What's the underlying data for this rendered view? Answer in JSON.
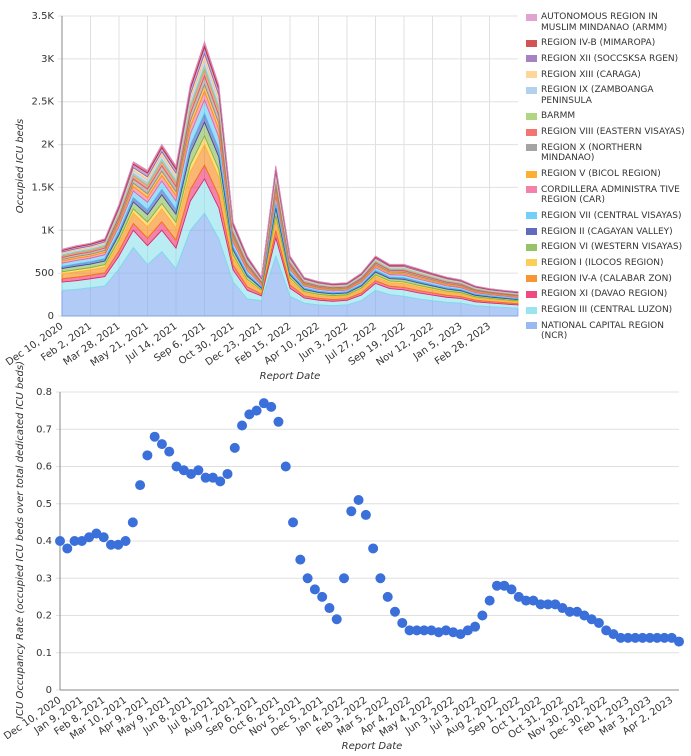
{
  "chart_data": [
    {
      "type": "area",
      "y_label": "Occupied ICU beds",
      "x_label": "Report Date",
      "categories": [
        "Dec 10, 2020",
        null,
        "Feb 2, 2021",
        null,
        "Mar 28, 2021",
        null,
        "May 21, 2021",
        null,
        "Jul 14, 2021",
        null,
        "Sep 6, 2021",
        null,
        "Oct 30, 2021",
        null,
        "Dec 23, 2021",
        null,
        "Feb 15, 2022",
        null,
        "Apr 10, 2022",
        null,
        "Jun 3, 2022",
        null,
        "Jul 27, 2022",
        null,
        "Sep 19, 2022",
        null,
        "Nov 12, 2022",
        null,
        "Jan 5, 2023",
        null,
        "Feb 28, 2023",
        null,
        null
      ],
      "ylim": [
        0,
        3500
      ],
      "yticks": [
        0,
        500,
        {
          "value": 1000,
          "label": "1K"
        },
        {
          "value": 1500,
          "label": "1.5K"
        },
        {
          "value": 2000,
          "label": "2K"
        },
        {
          "value": 2500,
          "label": "2.5K"
        },
        {
          "value": 3000,
          "label": "3K"
        },
        {
          "value": 3500,
          "label": "3.5K"
        }
      ],
      "grid": true,
      "xgrid": true,
      "stacked": true,
      "legend": "right",
      "series": [
        {
          "name": "AUTONOMOUS REGION IN MUSLIM MINDANAO (ARMM)",
          "color": "#d98cc3",
          "values": [
            5,
            5,
            5,
            6,
            8,
            10,
            11,
            13,
            12,
            17,
            20,
            18,
            7,
            5,
            3,
            11,
            5,
            3,
            3,
            3,
            3,
            3,
            4,
            4,
            4,
            4,
            3,
            3,
            3,
            2,
            2,
            2,
            2
          ]
        },
        {
          "name": "REGION IV-B (MIMAROPA)",
          "color": "#c62828",
          "values": [
            10,
            10,
            10,
            11,
            15,
            20,
            22,
            25,
            24,
            34,
            40,
            36,
            14,
            10,
            5,
            21,
            9,
            6,
            5,
            5,
            5,
            6,
            8,
            7,
            7,
            7,
            6,
            6,
            5,
            5,
            4,
            4,
            4
          ]
        },
        {
          "name": "REGION XII (SOCCSKSA RGEN)",
          "color": "#8e63b5",
          "values": [
            19,
            20,
            21,
            22,
            30,
            40,
            44,
            50,
            48,
            68,
            80,
            72,
            28,
            20,
            11,
            42,
            19,
            12,
            11,
            10,
            10,
            13,
            16,
            14,
            15,
            14,
            13,
            12,
            11,
            9,
            8,
            8,
            8
          ]
        },
        {
          "name": "REGION XIII (CARAGA)",
          "color": "#ffcc80",
          "values": [
            14,
            15,
            16,
            17,
            23,
            30,
            33,
            38,
            36,
            51,
            60,
            54,
            21,
            15,
            8,
            32,
            14,
            9,
            8,
            8,
            8,
            10,
            12,
            11,
            11,
            11,
            10,
            9,
            8,
            7,
            6,
            6,
            6
          ]
        },
        {
          "name": "REGION IX (ZAMBOANGA PENINSULA",
          "color": "#9ec5e8",
          "values": [
            19,
            20,
            21,
            22,
            30,
            40,
            44,
            50,
            48,
            68,
            80,
            72,
            28,
            20,
            11,
            42,
            19,
            12,
            11,
            10,
            10,
            13,
            16,
            14,
            15,
            14,
            13,
            12,
            11,
            9,
            8,
            8,
            8
          ]
        },
        {
          "name": "BARMM",
          "color": "#9ccc65",
          "values": [
            10,
            10,
            10,
            11,
            15,
            20,
            22,
            25,
            24,
            34,
            40,
            36,
            14,
            10,
            5,
            21,
            9,
            6,
            5,
            5,
            5,
            6,
            8,
            7,
            7,
            7,
            6,
            6,
            5,
            5,
            4,
            4,
            4
          ]
        },
        {
          "name": "REGION VIII (EASTERN VISAYAS)",
          "color": "#ef5350",
          "values": [
            19,
            20,
            21,
            22,
            30,
            40,
            44,
            50,
            48,
            68,
            80,
            72,
            28,
            20,
            11,
            42,
            19,
            12,
            11,
            10,
            10,
            13,
            16,
            14,
            15,
            14,
            13,
            12,
            11,
            9,
            8,
            8,
            8
          ]
        },
        {
          "name": "REGION X (NORTHERN MINDANAO)",
          "color": "#8d8d8d",
          "values": [
            24,
            26,
            26,
            28,
            38,
            50,
            55,
            63,
            60,
            85,
            100,
            90,
            35,
            25,
            14,
            53,
            24,
            15,
            14,
            13,
            13,
            16,
            20,
            18,
            19,
            18,
            16,
            15,
            14,
            12,
            11,
            10,
            10
          ]
        },
        {
          "name": "REGION V (BICOL REGION)",
          "color": "#ff9800",
          "values": [
            19,
            20,
            21,
            22,
            30,
            40,
            44,
            50,
            48,
            68,
            80,
            72,
            28,
            20,
            11,
            42,
            19,
            12,
            11,
            10,
            10,
            13,
            16,
            14,
            15,
            14,
            13,
            12,
            11,
            9,
            8,
            8,
            8
          ]
        },
        {
          "name": "CORDILLERA ADMINISTRA TIVE REGION (CAR)",
          "color": "#f06292",
          "values": [
            24,
            26,
            26,
            28,
            38,
            50,
            55,
            63,
            60,
            85,
            100,
            90,
            35,
            25,
            14,
            53,
            24,
            15,
            14,
            13,
            13,
            16,
            20,
            18,
            19,
            18,
            16,
            15,
            14,
            12,
            11,
            10,
            10
          ]
        },
        {
          "name": "REGION VII (CENTRAL VISAYAS)",
          "color": "#4fc3f7",
          "values": [
            38,
            41,
            42,
            44,
            60,
            80,
            88,
            100,
            96,
            136,
            160,
            144,
            56,
            40,
            22,
            84,
            38,
            24,
            22,
            21,
            21,
            26,
            32,
            28,
            30,
            28,
            26,
            23,
            22,
            18,
            17,
            16,
            15
          ]
        },
        {
          "name": "REGION II (CAGAYAN VALLEY)",
          "color": "#3949ab",
          "values": [
            24,
            26,
            26,
            28,
            38,
            50,
            55,
            63,
            60,
            85,
            100,
            90,
            35,
            25,
            14,
            53,
            24,
            15,
            14,
            13,
            13,
            16,
            20,
            18,
            19,
            18,
            16,
            15,
            14,
            12,
            11,
            10,
            10
          ]
        },
        {
          "name": "REGION VI (WESTERN VISAYAS)",
          "color": "#7cb342",
          "values": [
            38,
            41,
            42,
            44,
            60,
            80,
            88,
            100,
            96,
            136,
            160,
            144,
            56,
            40,
            22,
            84,
            38,
            24,
            22,
            21,
            21,
            26,
            32,
            28,
            30,
            28,
            26,
            23,
            22,
            18,
            17,
            16,
            15
          ]
        },
        {
          "name": "REGION I (ILOCOS REGION)",
          "color": "#fbc02d",
          "values": [
            24,
            26,
            26,
            28,
            38,
            50,
            55,
            63,
            60,
            85,
            100,
            90,
            35,
            25,
            14,
            53,
            24,
            15,
            14,
            13,
            13,
            16,
            20,
            18,
            19,
            18,
            16,
            15,
            14,
            12,
            11,
            10,
            10
          ]
        },
        {
          "name": "REGION IV-A (CALABAR ZON)",
          "color": "#f57c00",
          "values": [
            58,
            61,
            62,
            66,
            90,
            120,
            132,
            150,
            144,
            204,
            240,
            216,
            84,
            60,
            32,
            126,
            56,
            36,
            32,
            31,
            31,
            38,
            48,
            42,
            44,
            42,
            38,
            35,
            32,
            28,
            25,
            24,
            23
          ]
        },
        {
          "name": "REGION XI (DAVAO REGION)",
          "color": "#e91e63",
          "values": [
            38,
            41,
            42,
            44,
            60,
            80,
            88,
            100,
            96,
            136,
            160,
            144,
            56,
            40,
            22,
            84,
            38,
            24,
            22,
            21,
            21,
            26,
            32,
            28,
            30,
            28,
            26,
            23,
            22,
            18,
            17,
            16,
            15
          ]
        },
        {
          "name": "REGION III (CENTRAL LUZON)",
          "color": "#80deea",
          "values": [
            96,
            102,
            104,
            110,
            150,
            200,
            220,
            250,
            240,
            340,
            400,
            360,
            140,
            100,
            54,
            210,
            94,
            60,
            54,
            52,
            52,
            64,
            80,
            70,
            74,
            70,
            64,
            58,
            54,
            46,
            42,
            40,
            38
          ]
        },
        {
          "name": "NATIONAL CAPITAL REGION (NCR)",
          "color": "#7fa8f0",
          "values": [
            300,
            310,
            330,
            350,
            550,
            800,
            600,
            750,
            550,
            1000,
            1200,
            900,
            400,
            200,
            180,
            700,
            230,
            150,
            130,
            120,
            130,
            180,
            300,
            250,
            230,
            200,
            180,
            160,
            150,
            120,
            110,
            100,
            90
          ]
        }
      ]
    },
    {
      "type": "scatter",
      "y_label": "ICU Occupancy Rate (occupied ICU beds over total dedicated ICU beds)",
      "x_label": "Report Date",
      "categories": [
        "Dec 10, 2020",
        null,
        null,
        "Jan 9, 2021",
        null,
        null,
        "Feb 8, 2021",
        null,
        null,
        "Mar 10, 2021",
        null,
        null,
        "Apr 9, 2021",
        null,
        null,
        "May 9, 2021",
        null,
        null,
        "Jun 8, 2021",
        null,
        null,
        "Jul 8, 2021",
        null,
        null,
        "Aug 7, 2021",
        null,
        null,
        "Sep 6, 2021",
        null,
        null,
        "Oct 6, 2021",
        null,
        null,
        "Nov 5, 2021",
        null,
        null,
        "Dec 5, 2021",
        null,
        null,
        "Jan 4, 2022",
        null,
        null,
        "Feb 3, 2022",
        null,
        null,
        "Mar 5, 2022",
        null,
        null,
        "Apr 4, 2022",
        null,
        null,
        "May 4, 2022",
        null,
        null,
        "Jun 3, 2022",
        null,
        null,
        "Jul 3, 2022",
        null,
        null,
        "Aug 2, 2022",
        null,
        null,
        "Sep 1, 2022",
        null,
        null,
        "Oct 1, 2022",
        null,
        null,
        "Oct 31, 2022",
        null,
        null,
        "Nov 30, 2022",
        null,
        null,
        "Dec 30, 2022",
        null,
        null,
        "Feb 1, 2023",
        null,
        null,
        "Mar 3, 2023",
        null,
        null,
        "Apr 2, 2023",
        null
      ],
      "values": [
        0.4,
        0.38,
        0.4,
        0.4,
        0.41,
        0.42,
        0.41,
        0.39,
        0.39,
        0.4,
        0.45,
        0.55,
        0.63,
        0.68,
        0.66,
        0.64,
        0.6,
        0.59,
        0.58,
        0.59,
        0.57,
        0.57,
        0.56,
        0.58,
        0.65,
        0.71,
        0.74,
        0.75,
        0.77,
        0.76,
        0.72,
        0.6,
        0.45,
        0.35,
        0.3,
        0.27,
        0.25,
        0.22,
        0.19,
        0.3,
        0.48,
        0.51,
        0.47,
        0.38,
        0.3,
        0.25,
        0.21,
        0.18,
        0.16,
        0.16,
        0.16,
        0.16,
        0.155,
        0.16,
        0.155,
        0.15,
        0.16,
        0.17,
        0.2,
        0.24,
        0.28,
        0.28,
        0.27,
        0.25,
        0.24,
        0.24,
        0.23,
        0.23,
        0.23,
        0.22,
        0.21,
        0.21,
        0.2,
        0.19,
        0.18,
        0.16,
        0.15,
        0.14,
        0.14,
        0.14,
        0.14,
        0.14,
        0.14,
        0.14,
        0.14,
        0.13
      ],
      "color": "#3b6fd9",
      "ylim": [
        0,
        0.8
      ],
      "yticks": [
        0,
        0.1,
        0.2,
        0.3,
        0.4,
        0.5,
        0.6,
        0.7,
        0.8
      ],
      "grid": true
    }
  ]
}
